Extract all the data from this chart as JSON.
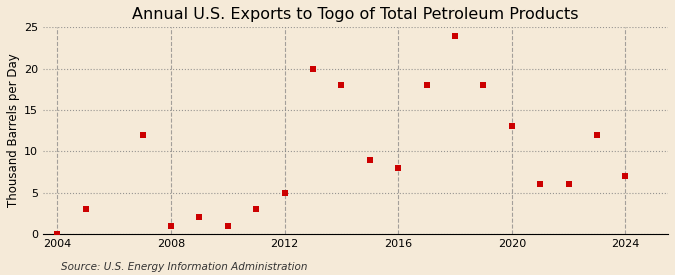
{
  "title": "Annual U.S. Exports to Togo of Total Petroleum Products",
  "ylabel": "Thousand Barrels per Day",
  "source": "Source: U.S. Energy Information Administration",
  "background_color": "#f5ead8",
  "marker_color": "#cc0000",
  "years": [
    2004,
    2005,
    2007,
    2008,
    2009,
    2010,
    2011,
    2012,
    2013,
    2014,
    2015,
    2016,
    2017,
    2018,
    2019,
    2020,
    2021,
    2022,
    2023,
    2024
  ],
  "values": [
    0,
    3,
    12,
    1,
    2,
    1,
    3,
    5,
    20,
    18,
    9,
    8,
    18,
    24,
    18,
    13,
    6,
    6,
    12,
    7
  ],
  "xlim": [
    2003.5,
    2025.5
  ],
  "ylim": [
    0,
    25
  ],
  "yticks": [
    0,
    5,
    10,
    15,
    20,
    25
  ],
  "xticks": [
    2004,
    2008,
    2012,
    2016,
    2020,
    2024
  ],
  "title_fontsize": 11.5,
  "label_fontsize": 8.5,
  "tick_fontsize": 8,
  "source_fontsize": 7.5
}
